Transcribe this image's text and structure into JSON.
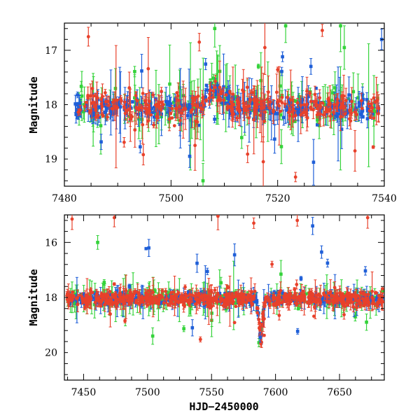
{
  "chart_data": [
    {
      "type": "scatter",
      "panel": "top",
      "title": "",
      "xlabel": "",
      "ylabel": "Magnitude",
      "xlim": [
        7480,
        7540
      ],
      "ylim": [
        19.5,
        16.5
      ],
      "y_inverted": true,
      "xticks": [
        7480,
        7500,
        7520,
        7540
      ],
      "xtick_labels": [
        "7480",
        "7500",
        "7520",
        "7540"
      ],
      "yticks": [
        17,
        18,
        19
      ],
      "ytick_labels": [
        "17",
        "18",
        "19"
      ],
      "baseline_mag": 18.05,
      "series": [
        {
          "name": "red",
          "color": "#e8412b",
          "marker": "circle",
          "values_note": "dense light curve, scatter ~0.15 mag, outliers to 16.7 and 19.1"
        },
        {
          "name": "green",
          "color": "#34d33a",
          "marker": "square",
          "values_note": "dense light curve with large error bars, outliers to 16.5 and 19.4"
        },
        {
          "name": "blue",
          "color": "#1f5fd8",
          "marker": "square",
          "values_note": "dense light curve, scatter ~0.1 mag"
        }
      ],
      "features": [
        {
          "desc": "brightening bump",
          "x_range": [
            7505,
            7512
          ],
          "peak_mag": 17.7
        }
      ],
      "outliers": [
        {
          "series": "red",
          "x": 7484.5,
          "mag": 16.75
        },
        {
          "series": "red",
          "x": 7494.8,
          "mag": 18.92
        },
        {
          "series": "blue",
          "x": 7494.5,
          "mag": 17.38
        },
        {
          "series": "blue",
          "x": 7503.5,
          "mag": 18.95
        },
        {
          "series": "red",
          "x": 7504.5,
          "mag": 18.75
        },
        {
          "series": "red",
          "x": 7505.3,
          "mag": 16.85
        },
        {
          "series": "green",
          "x": 7506.0,
          "mag": 19.4
        },
        {
          "series": "green",
          "x": 7508.2,
          "mag": 16.6
        },
        {
          "series": "red",
          "x": 7517.3,
          "mag": 19.05
        },
        {
          "series": "red",
          "x": 7517.6,
          "mag": 16.95
        },
        {
          "series": "green",
          "x": 7521.5,
          "mag": 16.55
        },
        {
          "series": "green",
          "x": 7531.8,
          "mag": 16.55
        },
        {
          "series": "green",
          "x": 7532.5,
          "mag": 16.95
        },
        {
          "series": "red",
          "x": 7534.5,
          "mag": 18.85
        },
        {
          "series": "blue",
          "x": 7539.5,
          "mag": 16.8
        }
      ]
    },
    {
      "type": "scatter",
      "panel": "bottom",
      "title": "",
      "xlabel": "HJD−2450000",
      "ylabel": "Magnitude",
      "xlim": [
        7435,
        7685
      ],
      "ylim": [
        21.0,
        15.0
      ],
      "y_inverted": true,
      "xticks": [
        7450,
        7500,
        7550,
        7600,
        7650
      ],
      "xtick_labels": [
        "7450",
        "7500",
        "7550",
        "7600",
        "7650"
      ],
      "yticks": [
        16,
        18,
        20
      ],
      "ytick_labels": [
        "16",
        "18",
        "20"
      ],
      "baseline_mag": 18.05,
      "series": [
        {
          "name": "red",
          "color": "#e8412b",
          "marker": "circle",
          "values_note": "dense light curve across 7440-7680, outliers to 15.1 and 19.0"
        },
        {
          "name": "green",
          "color": "#34d33a",
          "marker": "square",
          "values_note": "light curve, outliers to 15.8 and 19.4"
        },
        {
          "name": "blue",
          "color": "#1f5fd8",
          "marker": "square",
          "values_note": "light curve, dip near 7588 to 19.5"
        }
      ],
      "features": [
        {
          "desc": "fading dip",
          "x_range": [
            7585,
            7592
          ],
          "peak_mag": 19.5
        }
      ],
      "outliers": [
        {
          "series": "red",
          "x": 7441,
          "mag": 15.15
        },
        {
          "series": "red",
          "x": 7474,
          "mag": 15.1
        },
        {
          "series": "green",
          "x": 7461,
          "mag": 16.0
        },
        {
          "series": "blue",
          "x": 7501,
          "mag": 16.2
        },
        {
          "series": "green",
          "x": 7504,
          "mag": 19.4
        },
        {
          "series": "blue",
          "x": 7535,
          "mag": 19.1
        },
        {
          "series": "red",
          "x": 7555,
          "mag": 15.05
        },
        {
          "series": "blue",
          "x": 7568,
          "mag": 16.45
        },
        {
          "series": "red",
          "x": 7583,
          "mag": 15.3
        },
        {
          "series": "blue",
          "x": 7588,
          "mag": 19.45
        },
        {
          "series": "red",
          "x": 7617,
          "mag": 15.2
        },
        {
          "series": "blue",
          "x": 7629,
          "mag": 15.4
        },
        {
          "series": "blue",
          "x": 7636,
          "mag": 16.35
        },
        {
          "series": "red",
          "x": 7672,
          "mag": 15.1
        }
      ]
    }
  ],
  "colors": {
    "red": "#e8412b",
    "green": "#34d33a",
    "blue": "#1f5fd8"
  }
}
